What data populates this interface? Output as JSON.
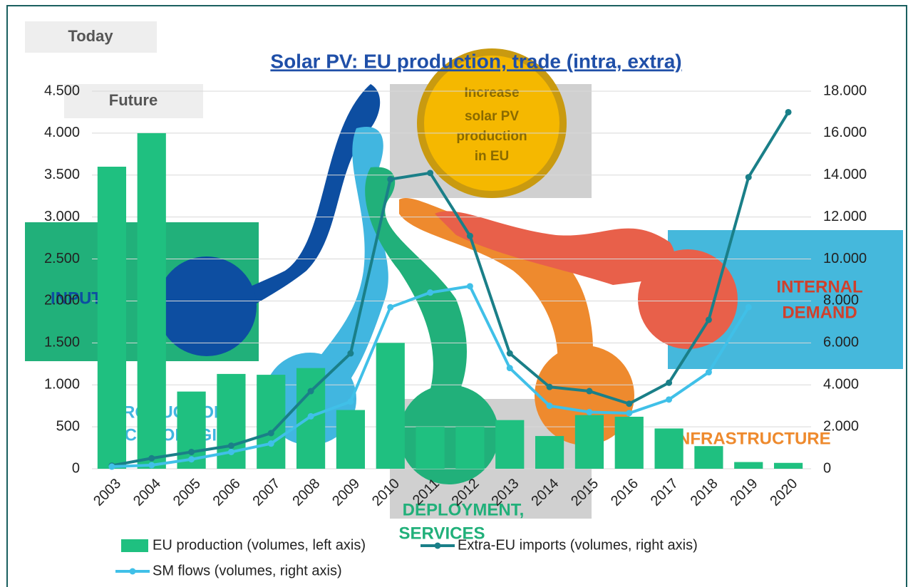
{
  "slide": {
    "today": "Today",
    "future": "Future",
    "goal": [
      "Increase",
      "solar PV",
      "production",
      "in EU"
    ],
    "inputs": "INPUTS",
    "production": [
      "PRODUCTION,",
      "TECHNOLOGIES"
    ],
    "deployment": [
      "DEPLOYMENT,",
      "SERVICES"
    ],
    "infrastructure": "INFRASTRUCTURE",
    "demand": [
      "INTERNAL",
      "DEMAND"
    ]
  },
  "chart_data": {
    "type": "bar_line",
    "title": "Solar PV: EU production, trade (intra, extra)",
    "categories": [
      "2003",
      "2004",
      "2005",
      "2006",
      "2007",
      "2008",
      "2009",
      "2010",
      "2011",
      "2012",
      "2013",
      "2014",
      "2015",
      "2016",
      "2017",
      "2018",
      "2019",
      "2020"
    ],
    "series": [
      {
        "name": "EU production (volumes, left axis)",
        "type": "bar",
        "axis": "y",
        "color": "#1fc080",
        "values": [
          3600,
          4000,
          920,
          1130,
          1120,
          1200,
          700,
          1500,
          500,
          500,
          580,
          390,
          640,
          620,
          480,
          270,
          80,
          70
        ]
      },
      {
        "name": "Extra-EU imports (volumes, right axis)",
        "type": "line",
        "axis": "y2",
        "color": "#1a7f88",
        "values": [
          150,
          500,
          800,
          1100,
          1700,
          3700,
          5500,
          13800,
          14100,
          11100,
          5500,
          3900,
          3700,
          3100,
          4100,
          7100,
          13900,
          17000
        ]
      },
      {
        "name": "SM flows (volumes, right axis)",
        "type": "line",
        "axis": "y2",
        "color": "#40c0e8",
        "values": [
          100,
          170,
          450,
          800,
          1200,
          2500,
          3200,
          7700,
          8400,
          8700,
          4800,
          3000,
          2700,
          2650,
          3300,
          4600,
          7700,
          null
        ]
      }
    ],
    "ylim": [
      0,
      4500
    ],
    "yticks": [
      0,
      {
        "value": 500,
        "label": "500"
      },
      {
        "value": 1000,
        "label": "1.000"
      },
      {
        "value": 1500,
        "label": "1.500"
      },
      {
        "value": 2000,
        "label": "2.000"
      },
      {
        "value": 2500,
        "label": "2.500"
      },
      {
        "value": 3000,
        "label": "3.000"
      },
      {
        "value": 3500,
        "label": "3.500"
      },
      {
        "value": 4000,
        "label": "4.000"
      },
      {
        "value": 4500,
        "label": "4.500"
      }
    ],
    "y2lim": [
      0,
      18000
    ],
    "y2ticks": [
      0,
      {
        "value": 2000,
        "label": "2.000"
      },
      {
        "value": 4000,
        "label": "4.000"
      },
      {
        "value": 6000,
        "label": "6.000"
      },
      {
        "value": 8000,
        "label": "8.000"
      },
      {
        "value": 10000,
        "label": "10.000"
      },
      {
        "value": 12000,
        "label": "12.000"
      },
      {
        "value": 14000,
        "label": "14.000"
      },
      {
        "value": 16000,
        "label": "16.000"
      },
      {
        "value": 18000,
        "label": "18.000"
      }
    ],
    "grid": true
  }
}
